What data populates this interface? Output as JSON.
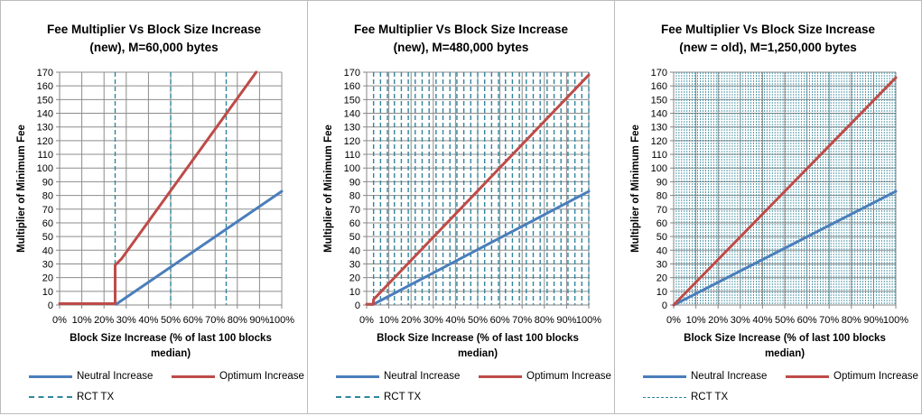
{
  "colors": {
    "neutral": "#4a7ebb",
    "optimum": "#be4b48",
    "rct": "#31859c",
    "grid": "#8c8c8c",
    "axis": "#868686"
  },
  "chart_data": [
    {
      "type": "line",
      "title_line1": "Fee Multiplier Vs Block Size Increase",
      "title_line2": "(new), M=60,000 bytes",
      "xlabel_line1": "Block Size Increase (% of last 100 blocks",
      "xlabel_line2": "median)",
      "ylabel": "Multiplier of Minimum Fee",
      "xlim": [
        0,
        100
      ],
      "ylim": [
        0,
        170
      ],
      "x_ticks": [
        "0%",
        "10%",
        "20%",
        "30%",
        "40%",
        "50%",
        "60%",
        "70%",
        "80%",
        "90%",
        "100%"
      ],
      "y_ticks": [
        0,
        10,
        20,
        30,
        40,
        50,
        60,
        70,
        80,
        90,
        100,
        110,
        120,
        130,
        140,
        150,
        160,
        170
      ],
      "grid": true,
      "series": [
        {
          "name": "Neutral Increase",
          "style": "solid",
          "points": [
            [
              0,
              1
            ],
            [
              25,
              1
            ],
            [
              25.4,
              0.5
            ],
            [
              100,
              83
            ]
          ]
        },
        {
          "name": "Optimum Increase",
          "style": "solid",
          "points": [
            [
              0,
              1
            ],
            [
              25,
              1
            ],
            [
              25,
              29
            ],
            [
              28,
              34
            ],
            [
              88.5,
              170
            ]
          ]
        }
      ],
      "rct_tx": {
        "name": "RCT TX",
        "style": "dashed",
        "x_values": [
          25,
          50,
          75
        ]
      }
    },
    {
      "type": "line",
      "title_line1": "Fee Multiplier Vs Block Size Increase",
      "title_line2": "(new), M=480,000 bytes",
      "xlabel_line1": "Block Size Increase (% of last 100 blocks",
      "xlabel_line2": "median)",
      "ylabel": "Multiplier of Minimum Fee",
      "xlim": [
        0,
        100
      ],
      "ylim": [
        0,
        170
      ],
      "x_ticks": [
        "0%",
        "10%",
        "20%",
        "30%",
        "40%",
        "50%",
        "60%",
        "70%",
        "80%",
        "90%",
        "100%"
      ],
      "y_ticks": [
        0,
        10,
        20,
        30,
        40,
        50,
        60,
        70,
        80,
        90,
        100,
        110,
        120,
        130,
        140,
        150,
        160,
        170
      ],
      "grid": true,
      "series": [
        {
          "name": "Neutral Increase",
          "style": "solid",
          "points": [
            [
              0,
              0.5
            ],
            [
              3,
              0.5
            ],
            [
              100,
              83
            ]
          ]
        },
        {
          "name": "Optimum Increase",
          "style": "solid",
          "points": [
            [
              0,
              0.5
            ],
            [
              3,
              0.5
            ],
            [
              3.1,
              4
            ],
            [
              100,
              168
            ]
          ]
        }
      ],
      "rct_tx": {
        "name": "RCT TX",
        "style": "dashed",
        "x_values": [
          3.125,
          6.25,
          9.375,
          12.5,
          15.625,
          18.75,
          21.875,
          25,
          28.125,
          31.25,
          34.375,
          37.5,
          40.625,
          43.75,
          46.875,
          50,
          53.125,
          56.25,
          59.375,
          62.5,
          65.625,
          68.75,
          71.875,
          75,
          78.125,
          81.25,
          84.375,
          87.5,
          90.625,
          93.75,
          96.875,
          100
        ]
      }
    },
    {
      "type": "line",
      "title_line1": "Fee Multiplier Vs Block Size Increase",
      "title_line2": "(new = old), M=1,250,000 bytes",
      "xlabel_line1": "Block Size Increase (% of last 100 blocks",
      "xlabel_line2": "median)",
      "ylabel": "Multiplier of Minimum Fee",
      "xlim": [
        0,
        100
      ],
      "ylim": [
        0,
        170
      ],
      "x_ticks": [
        "0%",
        "10%",
        "20%",
        "30%",
        "40%",
        "50%",
        "60%",
        "70%",
        "80%",
        "90%",
        "100%"
      ],
      "y_ticks": [
        0,
        10,
        20,
        30,
        40,
        50,
        60,
        70,
        80,
        90,
        100,
        110,
        120,
        130,
        140,
        150,
        160,
        170
      ],
      "grid": true,
      "series": [
        {
          "name": "Neutral Increase",
          "style": "solid",
          "points": [
            [
              0,
              0
            ],
            [
              100,
              83
            ]
          ]
        },
        {
          "name": "Optimum Increase",
          "style": "solid",
          "points": [
            [
              0,
              0
            ],
            [
              100,
              166
            ]
          ]
        }
      ],
      "rct_tx": {
        "name": "RCT TX",
        "style": "dotted",
        "x_values": [
          1.2,
          2.4,
          3.6,
          4.8,
          6,
          7.2,
          8.4,
          9.6,
          10.8,
          12,
          13.2,
          14.4,
          15.6,
          16.8,
          18,
          19.2,
          20.4,
          21.6,
          22.8,
          24,
          25.2,
          26.4,
          27.6,
          28.8,
          30,
          31.2,
          32.4,
          33.6,
          34.8,
          36,
          37.2,
          38.4,
          39.6,
          40.8,
          42,
          43.2,
          44.4,
          45.6,
          46.8,
          48,
          49.2,
          50.4,
          51.6,
          52.8,
          54,
          55.2,
          56.4,
          57.6,
          58.8,
          60,
          61.2,
          62.4,
          63.6,
          64.8,
          66,
          67.2,
          68.4,
          69.6,
          70.8,
          72,
          73.2,
          74.4,
          75.6,
          76.8,
          78,
          79.2,
          80.4,
          81.6,
          82.8,
          84,
          85.2,
          86.4,
          87.6,
          88.8,
          90,
          91.2,
          92.4,
          93.6,
          94.8,
          96,
          97.2,
          98.4,
          99.6
        ]
      }
    }
  ]
}
